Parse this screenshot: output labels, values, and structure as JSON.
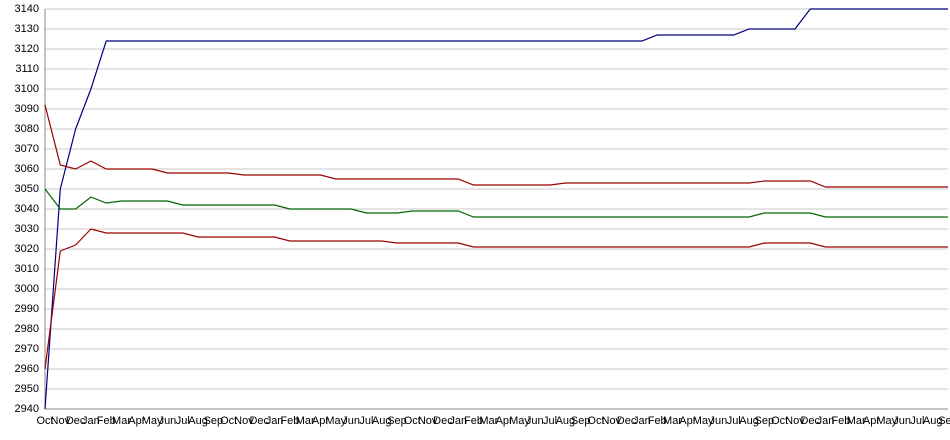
{
  "chart_data": {
    "type": "line",
    "categories": [
      "Oct",
      "Nov",
      "Dec",
      "Jan",
      "Feb",
      "Mar",
      "Apr",
      "May",
      "Jun",
      "Jul",
      "Aug",
      "Sep",
      "Oct",
      "Nov",
      "Dec",
      "Jan",
      "Feb",
      "Mar",
      "Apr",
      "May",
      "Jun",
      "Jul",
      "Aug",
      "Sep",
      "Oct",
      "Nov",
      "Dec",
      "Jan",
      "Feb",
      "Mar",
      "Apr",
      "May",
      "Jun",
      "Jul",
      "Aug",
      "Sep",
      "Oct",
      "Nov",
      "Dec",
      "Jan",
      "Feb",
      "Mar",
      "Apr",
      "May",
      "Jun",
      "Jul",
      "Aug",
      "Sep",
      "Oct",
      "Nov",
      "Dec",
      "Jan",
      "Feb",
      "Mar",
      "Apr",
      "May",
      "Jun",
      "Jul",
      "Aug",
      "Sep"
    ],
    "series": [
      {
        "color": "#000080",
        "values": [
          2940,
          3050,
          3080,
          3100,
          3124,
          3124,
          3124,
          3124,
          3124,
          3124,
          3124,
          3124,
          3124,
          3124,
          3124,
          3124,
          3124,
          3124,
          3124,
          3124,
          3124,
          3124,
          3124,
          3124,
          3124,
          3124,
          3124,
          3124,
          3124,
          3124,
          3124,
          3124,
          3124,
          3124,
          3124,
          3124,
          3124,
          3124,
          3124,
          3124,
          3127,
          3127,
          3127,
          3127,
          3127,
          3127,
          3130,
          3130,
          3130,
          3130,
          3140,
          3140,
          3140,
          3140,
          3140,
          3140,
          3140,
          3140,
          3140,
          3140
        ]
      },
      {
        "color": "#990000",
        "values": [
          3092,
          3062,
          3060,
          3064,
          3060,
          3060,
          3060,
          3060,
          3058,
          3058,
          3058,
          3058,
          3058,
          3057,
          3057,
          3057,
          3057,
          3057,
          3057,
          3055,
          3055,
          3055,
          3055,
          3055,
          3055,
          3055,
          3055,
          3055,
          3052,
          3052,
          3052,
          3052,
          3052,
          3052,
          3053,
          3053,
          3053,
          3053,
          3053,
          3053,
          3053,
          3053,
          3053,
          3053,
          3053,
          3053,
          3053,
          3054,
          3054,
          3054,
          3054,
          3051,
          3051,
          3051,
          3051,
          3051,
          3051,
          3051,
          3051,
          3051
        ]
      },
      {
        "color": "#006600",
        "values": [
          3050,
          3040,
          3040,
          3046,
          3043,
          3044,
          3044,
          3044,
          3044,
          3042,
          3042,
          3042,
          3042,
          3042,
          3042,
          3042,
          3040,
          3040,
          3040,
          3040,
          3040,
          3038,
          3038,
          3038,
          3039,
          3039,
          3039,
          3039,
          3036,
          3036,
          3036,
          3036,
          3036,
          3036,
          3036,
          3036,
          3036,
          3036,
          3036,
          3036,
          3036,
          3036,
          3036,
          3036,
          3036,
          3036,
          3036,
          3038,
          3038,
          3038,
          3038,
          3036,
          3036,
          3036,
          3036,
          3036,
          3036,
          3036,
          3036,
          3036
        ]
      },
      {
        "color": "#990000",
        "values": [
          2960,
          3019,
          3022,
          3030,
          3028,
          3028,
          3028,
          3028,
          3028,
          3028,
          3026,
          3026,
          3026,
          3026,
          3026,
          3026,
          3024,
          3024,
          3024,
          3024,
          3024,
          3024,
          3024,
          3023,
          3023,
          3023,
          3023,
          3023,
          3021,
          3021,
          3021,
          3021,
          3021,
          3021,
          3021,
          3021,
          3021,
          3021,
          3021,
          3021,
          3021,
          3021,
          3021,
          3021,
          3021,
          3021,
          3021,
          3023,
          3023,
          3023,
          3023,
          3021,
          3021,
          3021,
          3021,
          3021,
          3021,
          3021,
          3021,
          3021
        ]
      }
    ],
    "ylim": [
      2940,
      3140
    ],
    "yticks": [
      2940,
      2950,
      2960,
      2970,
      2980,
      2990,
      3000,
      3010,
      3020,
      3030,
      3040,
      3050,
      3060,
      3070,
      3080,
      3090,
      3100,
      3110,
      3120,
      3130,
      3140
    ],
    "grid": true
  }
}
